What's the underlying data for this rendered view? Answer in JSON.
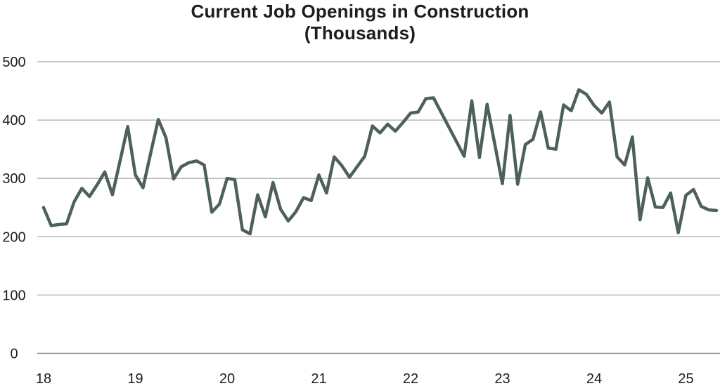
{
  "page": {
    "background_color": "#ffffff",
    "text_color": "#1d1d1d"
  },
  "chart_data": {
    "type": "line",
    "title": "Current Job Openings in Construction",
    "subtitle": "(Thousands)",
    "frequency": "monthly",
    "x_start": "2018-01",
    "x_end": "2025-05",
    "x_tick_labels": [
      "18",
      "19",
      "20",
      "21",
      "22",
      "23",
      "24",
      "25"
    ],
    "y_ticks": [
      0,
      100,
      200,
      300,
      400,
      500
    ],
    "ylim": [
      0,
      500
    ],
    "grid": "horizontal-only",
    "legend": "none",
    "line_color": "#4d6059",
    "grid_color": "#b9b9b9",
    "axis_line_color": "#8a8a8a",
    "values": [
      250,
      219,
      221,
      222,
      260,
      283,
      269,
      289,
      311,
      272,
      330,
      389,
      306,
      284,
      343,
      401,
      370,
      299,
      320,
      327,
      330,
      323,
      242,
      256,
      300,
      298,
      212,
      205,
      272,
      234,
      293,
      247,
      227,
      243,
      267,
      262,
      306,
      275,
      337,
      322,
      302,
      320,
      338,
      390,
      378,
      393,
      381,
      396,
      412,
      414,
      437,
      438,
      413,
      388,
      363,
      338,
      433,
      336,
      427,
      359,
      291,
      408,
      290,
      358,
      367,
      414,
      352,
      350,
      426,
      416,
      452,
      444,
      425,
      412,
      431,
      337,
      323,
      371,
      229,
      301,
      251,
      250,
      275,
      207,
      271,
      281,
      252,
      246,
      245
    ]
  }
}
